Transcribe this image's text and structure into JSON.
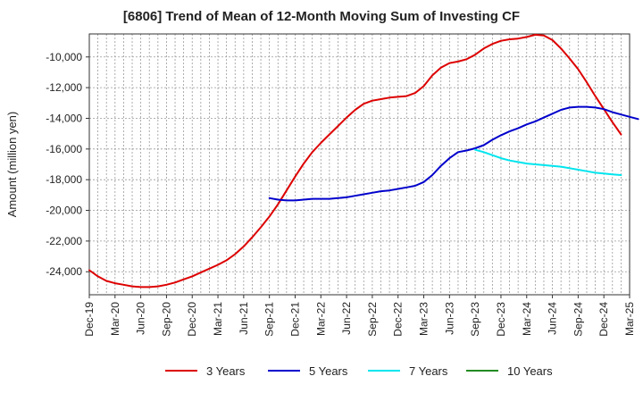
{
  "chart_data": {
    "type": "line",
    "title": "[6806]  Trend of Mean of 12-Month Moving Sum of Investing CF",
    "xlabel": "",
    "ylabel": "Amount (million yen)",
    "ylim": [
      -25500,
      -8500
    ],
    "yticks": [
      -24000,
      -22000,
      -20000,
      -18000,
      -16000,
      -14000,
      -12000,
      -10000
    ],
    "ytick_labels": [
      "-24,000",
      "-22,000",
      "-20,000",
      "-18,000",
      "-16,000",
      "-14,000",
      "-12,000",
      "-10,000"
    ],
    "x_tick_labels": [
      "Dec-19",
      "Mar-20",
      "Jun-20",
      "Sep-20",
      "Dec-20",
      "Mar-21",
      "Jun-21",
      "Sep-21",
      "Dec-21",
      "Mar-22",
      "Jun-22",
      "Sep-22",
      "Dec-22",
      "Mar-23",
      "Jun-23",
      "Sep-23",
      "Dec-23",
      "Mar-24",
      "Jun-24",
      "Sep-24",
      "Dec-24",
      "Mar-25"
    ],
    "grid": true,
    "legend_position": "bottom",
    "series": [
      {
        "name": "3 Years",
        "color": "#dd0000",
        "start_month_index": 0,
        "values": [
          -23900,
          -24300,
          -24600,
          -24750,
          -24850,
          -24950,
          -25000,
          -25000,
          -24950,
          -24850,
          -24700,
          -24500,
          -24300,
          -24050,
          -23800,
          -23550,
          -23250,
          -22850,
          -22350,
          -21750,
          -21100,
          -20400,
          -19600,
          -18700,
          -17800,
          -16950,
          -16200,
          -15600,
          -15050,
          -14500,
          -13950,
          -13450,
          -13050,
          -12850,
          -12750,
          -12650,
          -12600,
          -12550,
          -12350,
          -11900,
          -11200,
          -10700,
          -10400,
          -10300,
          -10150,
          -9850,
          -9450,
          -9150,
          -8950,
          -8850,
          -8800,
          -8700,
          -8550,
          -8600,
          -8900,
          -9450,
          -10100,
          -10800,
          -11650,
          -12550,
          -13400,
          -14250,
          -15050
        ]
      },
      {
        "name": "5 Years",
        "color": "#0000cc",
        "start_month_index": 21,
        "values": [
          -19200,
          -19300,
          -19350,
          -19350,
          -19300,
          -19250,
          -19250,
          -19250,
          -19200,
          -19150,
          -19050,
          -18950,
          -18850,
          -18750,
          -18700,
          -18600,
          -18500,
          -18400,
          -18150,
          -17700,
          -17100,
          -16600,
          -16200,
          -16100,
          -15950,
          -15750,
          -15400,
          -15100,
          -14850,
          -14650,
          -14400,
          -14200,
          -13950,
          -13700,
          -13450,
          -13300,
          -13250,
          -13250,
          -13300,
          -13400,
          -13600,
          -13750,
          -13900,
          -14050
        ]
      },
      {
        "name": "7 Years",
        "color": "#00e5ee",
        "start_month_index": 45,
        "values": [
          -16050,
          -16200,
          -16400,
          -16600,
          -16750,
          -16850,
          -16950,
          -17000,
          -17050,
          -17100,
          -17150,
          -17250,
          -17350,
          -17450,
          -17550,
          -17600,
          -17650,
          -17700
        ]
      },
      {
        "name": "10 Years",
        "color": "#228b22",
        "start_month_index": 0,
        "values": []
      }
    ]
  }
}
